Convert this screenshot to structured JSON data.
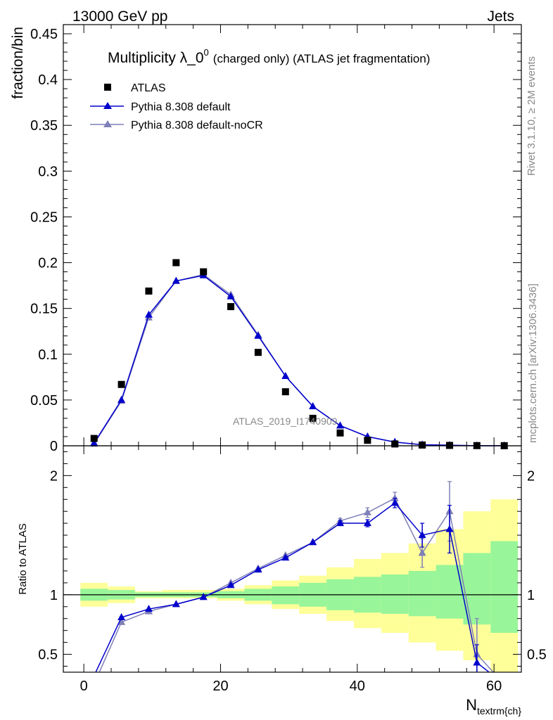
{
  "header": {
    "left": "13000 GeV pp",
    "right": "Jets"
  },
  "side_labels": {
    "top": "Rivet 3.1.10, ≥ 2M events",
    "bottom": "mcplots.cern.ch [arXiv:1306.3436]"
  },
  "chart_data": [
    {
      "type": "scatter",
      "title": "Multiplicity λ_0",
      "title_sup": "0",
      "title_suffix": "(charged only) (ATLAS jet fragmentation)",
      "ylabel": "fraction/bin",
      "watermark": "ATLAS_2019_I1740909",
      "xlim": [
        -3,
        64
      ],
      "ylim": [
        0,
        0.46
      ],
      "yticks": [
        0,
        0.05,
        0.1,
        0.15,
        0.2,
        0.25,
        0.3,
        0.35,
        0.4,
        0.45
      ],
      "ytick_labels": [
        "0",
        "0.05",
        "0.1",
        "0.15",
        "0.2",
        "0.25",
        "0.3",
        "0.35",
        "0.4",
        "0.45"
      ],
      "legend_placement": "top-left",
      "x": [
        1.5,
        5.5,
        9.5,
        13.5,
        17.5,
        21.5,
        25.5,
        29.5,
        33.5,
        37.5,
        41.5,
        45.5,
        49.5,
        53.5,
        57.5,
        61.5
      ],
      "series": [
        {
          "name": "ATLAS",
          "marker": "square",
          "color": "#000000",
          "values": [
            0.008,
            0.067,
            0.169,
            0.2,
            0.19,
            0.152,
            0.102,
            0.059,
            0.03,
            0.014,
            0.006,
            0.002,
            0.0008,
            0.0004,
            0.0002,
            0.0001
          ]
        },
        {
          "name": "Pythia 8.308 default",
          "marker": "triangle",
          "color": "#0000cc",
          "values": [
            0.003,
            0.05,
            0.143,
            0.18,
            0.186,
            0.163,
            0.12,
            0.076,
            0.043,
            0.022,
            0.01,
            0.004,
            0.0012,
            0.0006,
            0.0001,
            5e-05
          ]
        },
        {
          "name": "Pythia 8.308 default-noCR",
          "marker": "triangle",
          "color": "#7f7fb8",
          "values": [
            0.002,
            0.049,
            0.14,
            0.18,
            0.187,
            0.165,
            0.121,
            0.076,
            0.043,
            0.022,
            0.01,
            0.004,
            0.0011,
            0.0006,
            0.0001,
            5e-05
          ]
        }
      ]
    },
    {
      "type": "line",
      "ylabel": "Ratio to ATLAS",
      "xlabel": "N",
      "xlabel_sub": "textrm{ch}",
      "xlim": [
        -3,
        64
      ],
      "ylim": [
        0.35,
        2.25
      ],
      "xticks": [
        0,
        20,
        40,
        60
      ],
      "xtick_labels": [
        "0",
        "20",
        "40",
        "60"
      ],
      "yticks": [
        0.5,
        1,
        2
      ],
      "ytick_labels": [
        "0.5",
        "1",
        "2"
      ],
      "bin_edges": [
        -0.5,
        3.5,
        7.5,
        11.5,
        15.5,
        19.5,
        23.5,
        27.5,
        31.5,
        35.5,
        39.5,
        43.5,
        47.5,
        51.5,
        55.5,
        59.5,
        63.5
      ],
      "band_inner": [
        [
          0.95,
          1.05
        ],
        [
          0.96,
          1.04
        ],
        [
          0.98,
          1.02
        ],
        [
          0.98,
          1.02
        ],
        [
          0.98,
          1.02
        ],
        [
          0.97,
          1.03
        ],
        [
          0.95,
          1.05
        ],
        [
          0.92,
          1.07
        ],
        [
          0.9,
          1.1
        ],
        [
          0.87,
          1.13
        ],
        [
          0.85,
          1.15
        ],
        [
          0.84,
          1.17
        ],
        [
          0.82,
          1.2
        ],
        [
          0.8,
          1.25
        ],
        [
          0.75,
          1.35
        ],
        [
          0.68,
          1.45
        ]
      ],
      "band_outer": [
        [
          0.9,
          1.1
        ],
        [
          0.93,
          1.07
        ],
        [
          0.97,
          1.03
        ],
        [
          0.97,
          1.04
        ],
        [
          0.97,
          1.04
        ],
        [
          0.95,
          1.05
        ],
        [
          0.92,
          1.08
        ],
        [
          0.88,
          1.12
        ],
        [
          0.84,
          1.16
        ],
        [
          0.78,
          1.23
        ],
        [
          0.72,
          1.3
        ],
        [
          0.68,
          1.35
        ],
        [
          0.6,
          1.43
        ],
        [
          0.53,
          1.55
        ],
        [
          0.45,
          1.7
        ],
        [
          0.35,
          1.8
        ]
      ],
      "x": [
        1.5,
        5.5,
        9.5,
        13.5,
        17.5,
        21.5,
        25.5,
        29.5,
        33.5,
        37.5,
        41.5,
        45.5,
        49.5,
        53.5,
        57.5,
        61.5
      ],
      "series": [
        {
          "name": "Pythia 8.308 default",
          "color": "#0000cc",
          "values": [
            0.32,
            0.81,
            0.88,
            0.92,
            0.98,
            1.08,
            1.21,
            1.31,
            1.44,
            1.6,
            1.6,
            1.77,
            1.5,
            1.55,
            0.43,
            0.25
          ],
          "errors": [
            0,
            0,
            0,
            0,
            0,
            0,
            0,
            0,
            0,
            0.02,
            0.03,
            0.04,
            0.1,
            0.2,
            0.15,
            0
          ]
        },
        {
          "name": "Pythia 8.308 default-noCR",
          "color": "#7f7fb8",
          "values": [
            0.25,
            0.77,
            0.86,
            0.92,
            0.98,
            1.1,
            1.22,
            1.33,
            1.44,
            1.62,
            1.69,
            1.81,
            1.35,
            1.7,
            0.5,
            0.25
          ],
          "errors": [
            0,
            0,
            0,
            0,
            0,
            0,
            0,
            0,
            0,
            0.02,
            0.04,
            0.05,
            0.12,
            0.25,
            0.3,
            0
          ]
        }
      ]
    }
  ]
}
